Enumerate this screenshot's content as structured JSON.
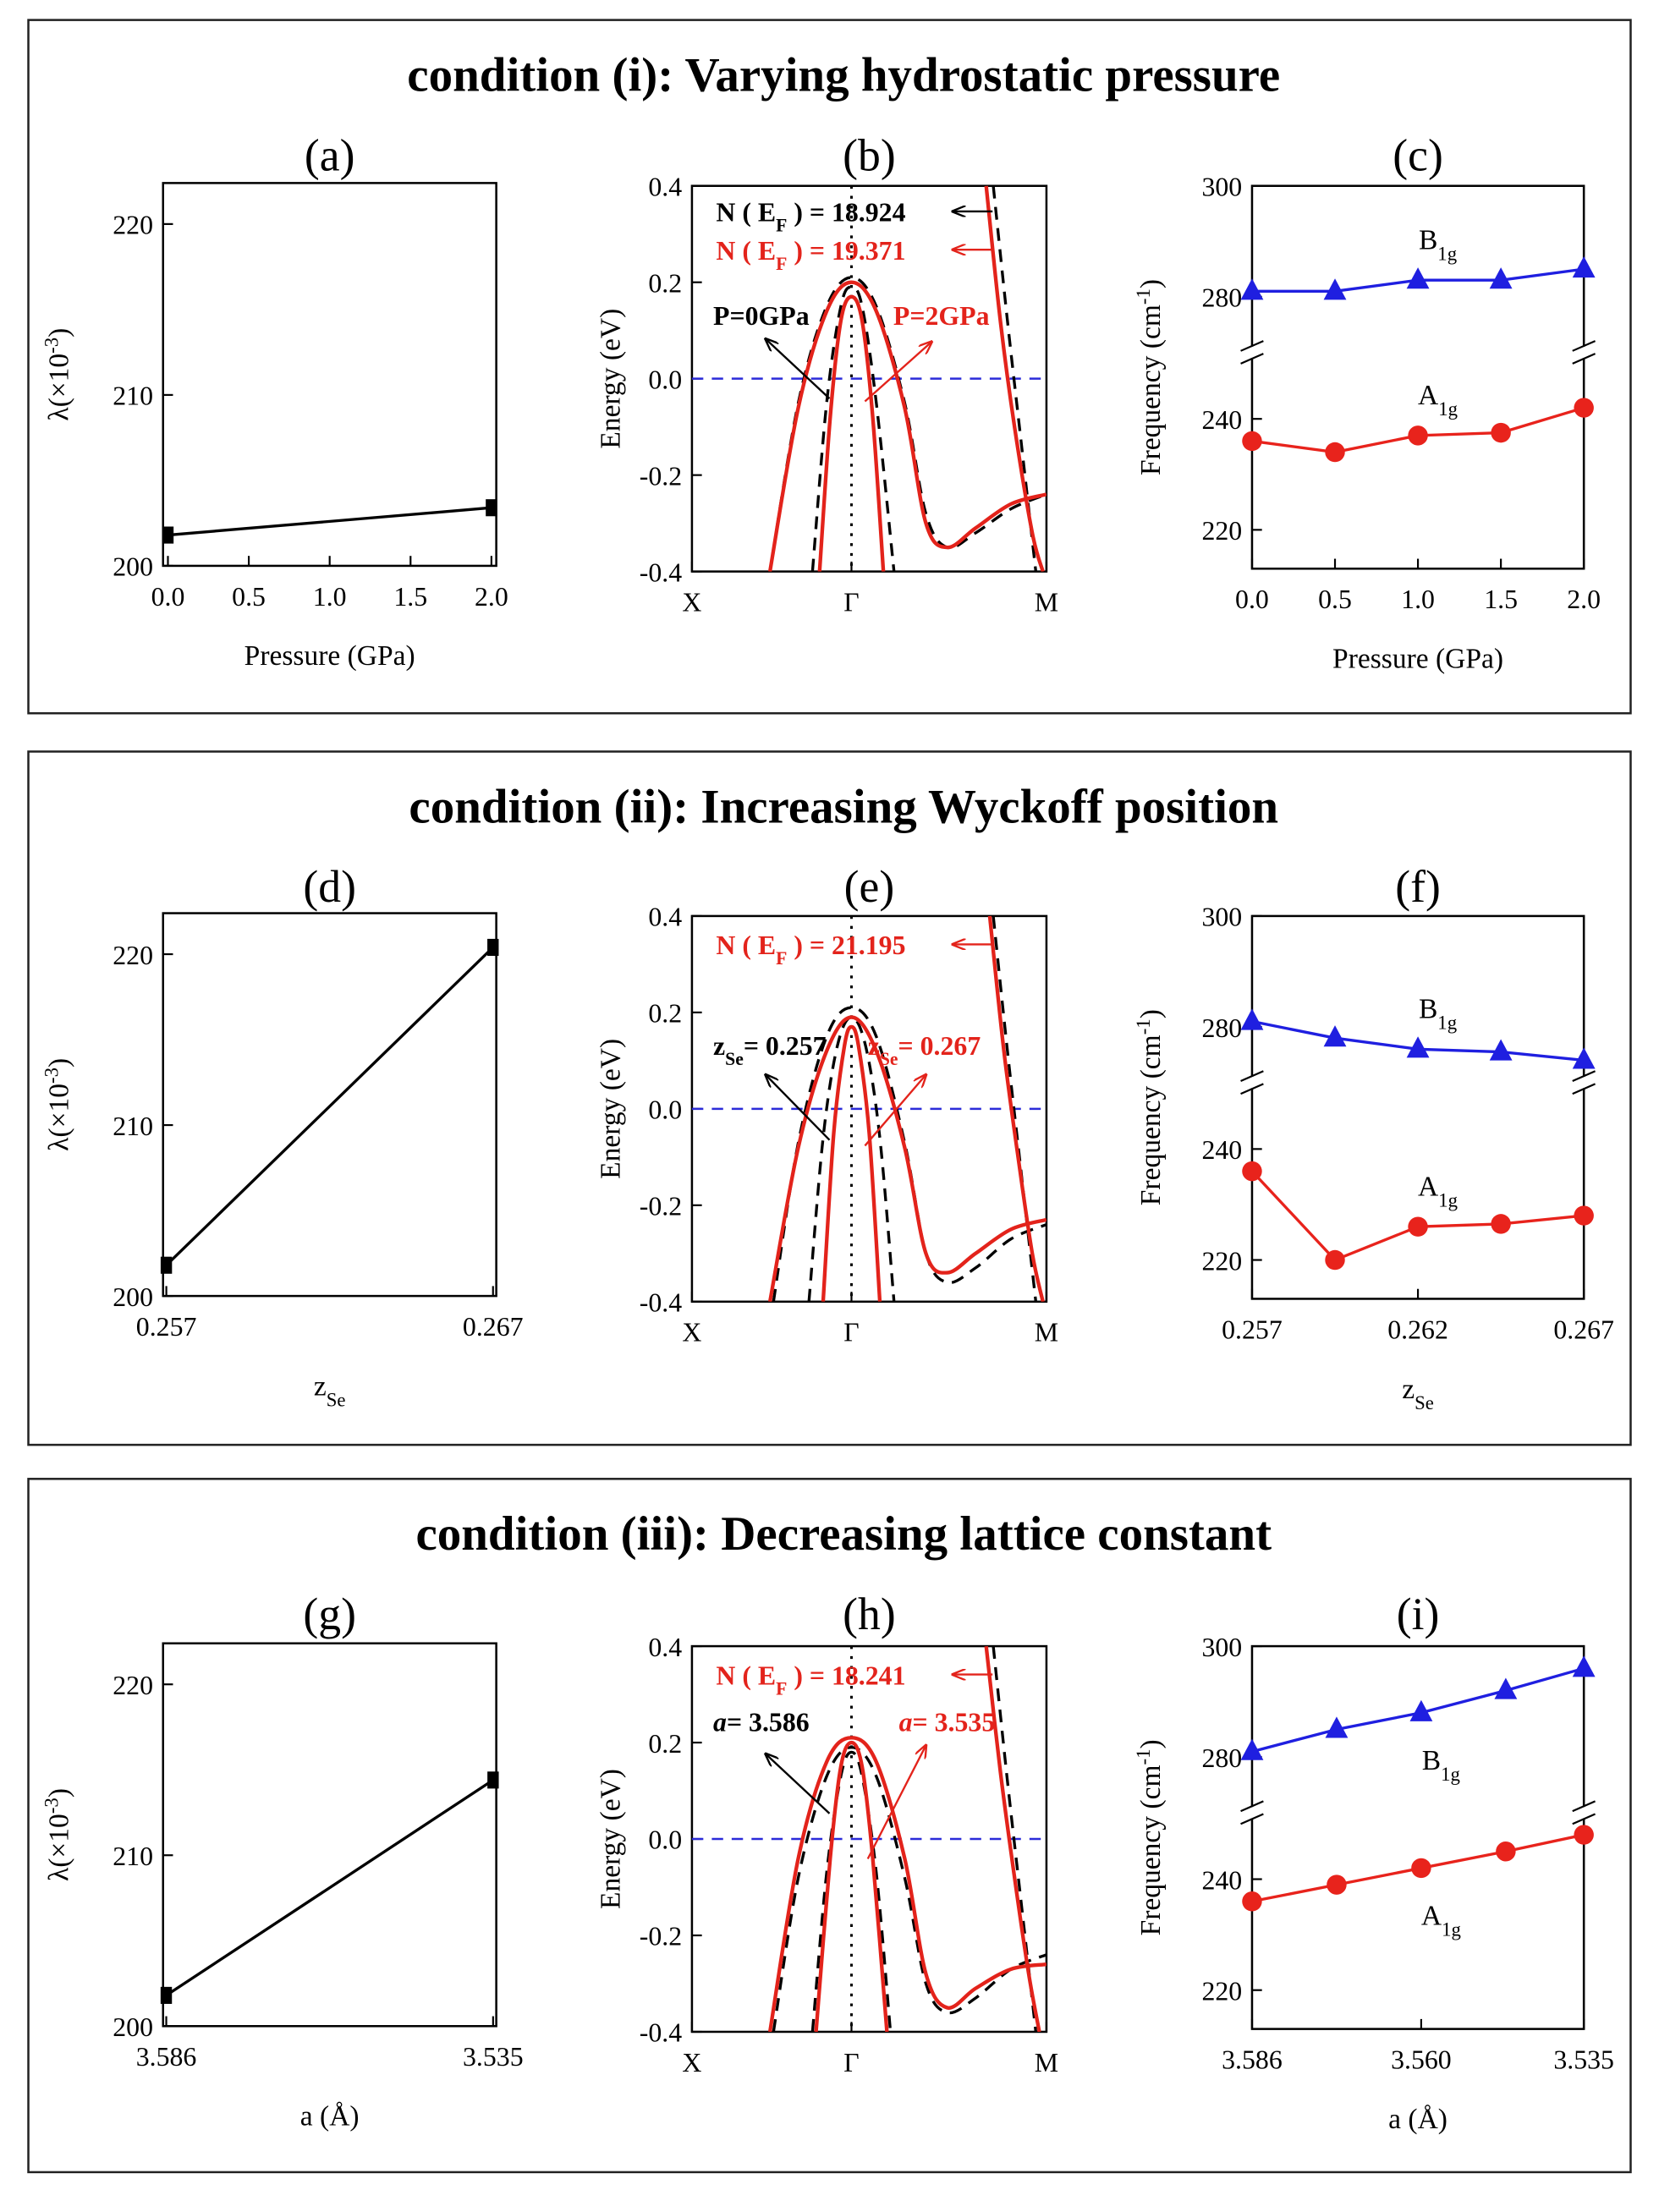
{
  "sections": [
    "condition (i): Varying hydrostatic pressure",
    "condition (ii): Increasing Wyckoff position",
    "condition (iii): Decreasing lattice constant"
  ],
  "chart_data": [
    {
      "type": "line",
      "label": "(a)",
      "xlabel": "Pressure (GPa)",
      "ylabel": {
        "text": "λ(×10",
        "sup": "-3",
        "after": ")"
      },
      "xlim": [
        -0.03,
        2.03
      ],
      "xticks": [
        {
          "value": 0,
          "label": "0.0"
        },
        0.5,
        {
          "value": 1,
          "label": "1.0"
        },
        1.5,
        {
          "value": 2,
          "label": "2.0"
        }
      ],
      "ylim": [
        200,
        222.4
      ],
      "yticks": [
        200,
        210,
        220
      ],
      "series": [
        {
          "color": "#000000",
          "marker": "square",
          "x": [
            0,
            2
          ],
          "values": [
            201.8,
            203.4
          ]
        }
      ]
    },
    {
      "type": "band",
      "label": "(b)",
      "ylabel": "Energy (eV)",
      "zero_line_color": "#2b2bd9",
      "xlim": [
        0,
        1
      ],
      "xticks": [
        {
          "value": 0,
          "label": "X"
        },
        {
          "value": 0.45,
          "label": "Γ"
        },
        {
          "value": 1,
          "label": "M"
        }
      ],
      "ylim": [
        -0.4,
        0.4
      ],
      "yticks": [
        -0.4,
        -0.2,
        {
          "value": 0,
          "label": "0.0"
        },
        0.2,
        0.4
      ],
      "series": [
        {
          "color": "#000000",
          "dash": true,
          "x": [
            0.22,
            0.3,
            0.38,
            0.45,
            0.52,
            0.6,
            0.66,
            0.72,
            0.8,
            0.9,
            1.0
          ],
          "values": [
            -0.4,
            -0.05,
            0.15,
            0.21,
            0.15,
            -0.05,
            -0.28,
            -0.35,
            -0.32,
            -0.27,
            -0.24
          ]
        },
        {
          "color": "#000000",
          "dash": true,
          "x": [
            0.34,
            0.38,
            0.42,
            0.45,
            0.48,
            0.52,
            0.57
          ],
          "values": [
            -0.4,
            -0.05,
            0.15,
            0.19,
            0.15,
            -0.05,
            -0.4
          ]
        },
        {
          "color": "#000000",
          "dash": true,
          "x": [
            0.85,
            0.89,
            0.93,
            0.97
          ],
          "values": [
            0.4,
            0.12,
            -0.14,
            -0.4
          ]
        },
        {
          "color": "#e3231b",
          "x": [
            0.22,
            0.3,
            0.38,
            0.45,
            0.52,
            0.6,
            0.66,
            0.72,
            0.8,
            0.9,
            1.0
          ],
          "values": [
            -0.4,
            -0.06,
            0.14,
            0.2,
            0.14,
            -0.06,
            -0.3,
            -0.35,
            -0.31,
            -0.26,
            -0.24
          ]
        },
        {
          "color": "#e3231b",
          "x": [
            0.36,
            0.39,
            0.42,
            0.45,
            0.48,
            0.51,
            0.54
          ],
          "values": [
            -0.4,
            -0.08,
            0.12,
            0.17,
            0.12,
            -0.08,
            -0.4
          ]
        },
        {
          "color": "#e3231b",
          "x": [
            0.83,
            0.87,
            0.91,
            0.96,
            0.99
          ],
          "values": [
            0.4,
            0.12,
            -0.1,
            -0.32,
            -0.4
          ]
        }
      ],
      "annotations": [
        {
          "text": {
            "text": "N ( E",
            "sub": "F",
            "after": " ) = 18.924"
          },
          "color": "#000000"
        },
        {
          "text": {
            "text": "N ( E",
            "sub": "F",
            "after": " ) = 19.371"
          },
          "color": "#e3231b"
        },
        {
          "text": "P=0GPa",
          "color": "#000000"
        },
        {
          "text": "P=2GPa",
          "color": "#e3231b"
        }
      ]
    },
    {
      "type": "line",
      "label": "(c)",
      "xlabel": "Pressure (GPa)",
      "ylabel": {
        "text": "Frequency (cm",
        "sup": "-1",
        "after": ")"
      },
      "xlim": [
        0,
        2
      ],
      "xticks": [
        {
          "value": 0,
          "label": "0.0"
        },
        0.5,
        {
          "value": 1,
          "label": "1.0"
        },
        1.5,
        {
          "value": 2,
          "label": "2.0"
        }
      ],
      "ylim": [
        213,
        300
      ],
      "ybreak": [
        252,
        270
      ],
      "yticks": [
        220,
        240,
        280,
        300
      ],
      "series": [
        {
          "name": {
            "text": "B",
            "sub": "1g"
          },
          "color": "#1f1fe0",
          "marker": "triangle",
          "x": [
            0,
            0.5,
            1,
            1.5,
            2
          ],
          "values": [
            281,
            281,
            283,
            283,
            285
          ]
        },
        {
          "name": {
            "text": "A",
            "sub": "1g"
          },
          "color": "#e8231c",
          "marker": "circle",
          "x": [
            0,
            0.5,
            1,
            1.5,
            2
          ],
          "values": [
            236,
            234,
            237,
            237.5,
            242
          ]
        }
      ]
    },
    {
      "type": "line",
      "label": "(d)",
      "xlabel": {
        "text": "z",
        "sub": "Se"
      },
      "ylabel": {
        "text": "λ(×10",
        "sup": "-3",
        "after": ")"
      },
      "xlim": [
        0.2569,
        0.2671
      ],
      "xticks": [
        0.257,
        0.267
      ],
      "ylim": [
        200,
        222.4
      ],
      "yticks": [
        200,
        210,
        220
      ],
      "series": [
        {
          "color": "#000000",
          "marker": "square",
          "x": [
            0.257,
            0.267
          ],
          "values": [
            201.8,
            220.4
          ]
        }
      ]
    },
    {
      "type": "band",
      "label": "(e)",
      "ylabel": "Energy (eV)",
      "zero_line_color": "#2b2bd9",
      "xlim": [
        0,
        1
      ],
      "xticks": [
        {
          "value": 0,
          "label": "X"
        },
        {
          "value": 0.45,
          "label": "Γ"
        },
        {
          "value": 1,
          "label": "M"
        }
      ],
      "ylim": [
        -0.4,
        0.4
      ],
      "yticks": [
        -0.4,
        -0.2,
        {
          "value": 0,
          "label": "0.0"
        },
        0.2,
        0.4
      ],
      "series": [
        {
          "color": "#000000",
          "dash": true,
          "x": [
            0.23,
            0.3,
            0.38,
            0.45,
            0.52,
            0.6,
            0.66,
            0.72,
            0.8,
            0.9,
            1.0
          ],
          "values": [
            -0.4,
            -0.07,
            0.15,
            0.21,
            0.15,
            -0.07,
            -0.3,
            -0.36,
            -0.33,
            -0.27,
            -0.24
          ]
        },
        {
          "color": "#000000",
          "dash": true,
          "x": [
            0.33,
            0.37,
            0.41,
            0.45,
            0.49,
            0.53,
            0.57
          ],
          "values": [
            -0.4,
            -0.06,
            0.13,
            0.19,
            0.13,
            -0.06,
            -0.4
          ]
        },
        {
          "color": "#000000",
          "dash": true,
          "x": [
            0.85,
            0.89,
            0.93,
            0.97
          ],
          "values": [
            0.4,
            0.12,
            -0.14,
            -0.4
          ]
        },
        {
          "color": "#e3231b",
          "x": [
            0.22,
            0.3,
            0.38,
            0.45,
            0.52,
            0.6,
            0.66,
            0.72,
            0.8,
            0.9,
            1.0
          ],
          "values": [
            -0.4,
            -0.08,
            0.12,
            0.19,
            0.12,
            -0.08,
            -0.3,
            -0.34,
            -0.3,
            -0.25,
            -0.23
          ]
        },
        {
          "color": "#e3231b",
          "x": [
            0.37,
            0.4,
            0.43,
            0.45,
            0.47,
            0.5,
            0.53
          ],
          "values": [
            -0.4,
            -0.05,
            0.13,
            0.17,
            0.13,
            -0.05,
            -0.4
          ]
        },
        {
          "color": "#e3231b",
          "x": [
            0.84,
            0.88,
            0.92,
            0.96,
            0.99
          ],
          "values": [
            0.4,
            0.12,
            -0.1,
            -0.3,
            -0.4
          ]
        }
      ],
      "annotations": [
        {
          "text": {
            "text": "N ( E",
            "sub": "F",
            "after": " ) = 21.195"
          },
          "color": "#e3231b"
        },
        {
          "text": {
            "text": "z",
            "sub": "Se",
            "after": "= 0.257"
          },
          "color": "#000000"
        },
        {
          "text": {
            "text": "z",
            "sub": "Se",
            "after": "= 0.267"
          },
          "color": "#e3231b"
        }
      ]
    },
    {
      "type": "line",
      "label": "(f)",
      "xlabel": {
        "text": "z",
        "sub": "Se"
      },
      "ylabel": {
        "text": "Frequency (cm",
        "sup": "-1",
        "after": ")"
      },
      "xlim": [
        0.257,
        0.267
      ],
      "xticks": [
        0.257,
        0.262,
        0.267
      ],
      "ylim": [
        213,
        300
      ],
      "ybreak": [
        252,
        270
      ],
      "yticks": [
        220,
        240,
        280,
        300
      ],
      "series": [
        {
          "name": {
            "text": "B",
            "sub": "1g"
          },
          "color": "#1f1fe0",
          "marker": "triangle",
          "x": [
            0.257,
            0.2595,
            0.262,
            0.2645,
            0.267
          ],
          "values": [
            281,
            278,
            276,
            275.5,
            274
          ]
        },
        {
          "name": {
            "text": "A",
            "sub": "1g"
          },
          "color": "#e8231c",
          "marker": "circle",
          "x": [
            0.257,
            0.2595,
            0.262,
            0.2645,
            0.267
          ],
          "values": [
            236,
            220,
            226,
            226.5,
            228
          ]
        }
      ]
    },
    {
      "type": "line",
      "label": "(g)",
      "xlabel": "a (Å)",
      "ylabel": {
        "text": "λ(×10",
        "sup": "-3",
        "after": ")"
      },
      "xlim": [
        3.5865,
        3.5345
      ],
      "xticks": [
        3.586,
        3.535
      ],
      "ylim": [
        200,
        222.4
      ],
      "yticks": [
        200,
        210,
        220
      ],
      "series": [
        {
          "color": "#000000",
          "marker": "square",
          "x": [
            3.586,
            3.535
          ],
          "values": [
            201.8,
            214.4
          ]
        }
      ]
    },
    {
      "type": "band",
      "label": "(h)",
      "ylabel": "Energy (eV)",
      "zero_line_color": "#2b2bd9",
      "xlim": [
        0,
        1
      ],
      "xticks": [
        {
          "value": 0,
          "label": "X"
        },
        {
          "value": 0.45,
          "label": "Γ"
        },
        {
          "value": 1,
          "label": "M"
        }
      ],
      "ylim": [
        -0.4,
        0.4
      ],
      "yticks": [
        -0.4,
        -0.2,
        {
          "value": 0,
          "label": "0.0"
        },
        0.2,
        0.4
      ],
      "series": [
        {
          "color": "#000000",
          "dash": true,
          "x": [
            0.23,
            0.3,
            0.38,
            0.45,
            0.52,
            0.6,
            0.66,
            0.72,
            0.8,
            0.9,
            1.0
          ],
          "values": [
            -0.4,
            -0.08,
            0.13,
            0.19,
            0.13,
            -0.08,
            -0.3,
            -0.36,
            -0.33,
            -0.27,
            -0.24
          ]
        },
        {
          "color": "#000000",
          "dash": true,
          "x": [
            0.34,
            0.38,
            0.42,
            0.45,
            0.48,
            0.52,
            0.56
          ],
          "values": [
            -0.4,
            -0.07,
            0.13,
            0.18,
            0.13,
            -0.07,
            -0.4
          ]
        },
        {
          "color": "#000000",
          "dash": true,
          "x": [
            0.85,
            0.89,
            0.93,
            0.97
          ],
          "values": [
            0.4,
            0.12,
            -0.14,
            -0.4
          ]
        },
        {
          "color": "#e3231b",
          "x": [
            0.22,
            0.3,
            0.38,
            0.45,
            0.52,
            0.6,
            0.66,
            0.72,
            0.8,
            0.9,
            1.0
          ],
          "values": [
            -0.4,
            -0.04,
            0.16,
            0.21,
            0.16,
            -0.04,
            -0.28,
            -0.35,
            -0.31,
            -0.27,
            -0.26
          ]
        },
        {
          "color": "#e3231b",
          "x": [
            0.35,
            0.39,
            0.42,
            0.45,
            0.48,
            0.51,
            0.55
          ],
          "values": [
            -0.4,
            -0.04,
            0.15,
            0.2,
            0.15,
            -0.04,
            -0.4
          ]
        },
        {
          "color": "#e3231b",
          "x": [
            0.83,
            0.87,
            0.91,
            0.95,
            0.98
          ],
          "values": [
            0.4,
            0.14,
            -0.08,
            -0.28,
            -0.4
          ]
        }
      ],
      "annotations": [
        {
          "text": {
            "text": "N ( E",
            "sub": "F",
            "after": " ) = 18.241"
          },
          "color": "#e3231b"
        },
        {
          "text": {
            "italic": "a",
            "after": "= 3.586"
          },
          "color": "#000000"
        },
        {
          "text": {
            "italic": "a",
            "after": "= 3.535"
          },
          "color": "#e3231b"
        }
      ]
    },
    {
      "type": "line",
      "label": "(i)",
      "xlabel": "a (Å)",
      "ylabel": {
        "text": "Frequency (cm",
        "sup": "-1",
        "after": ")"
      },
      "xlim": [
        3.586,
        3.535
      ],
      "xticks": [
        3.586,
        {
          "value": 3.56,
          "label": "3.560"
        },
        3.535
      ],
      "ylim": [
        213,
        300
      ],
      "ybreak": [
        252,
        270
      ],
      "yticks": [
        220,
        240,
        280,
        300
      ],
      "series": [
        {
          "name": {
            "text": "B",
            "sub": "1g"
          },
          "color": "#1f1fe0",
          "marker": "triangle",
          "x": [
            3.586,
            3.573,
            3.56,
            3.547,
            3.535
          ],
          "values": [
            281,
            285,
            288,
            292,
            296
          ]
        },
        {
          "name": {
            "text": "A",
            "sub": "1g"
          },
          "color": "#e8231c",
          "marker": "circle",
          "x": [
            3.586,
            3.573,
            3.56,
            3.547,
            3.535
          ],
          "values": [
            236,
            239,
            242,
            245,
            248
          ]
        }
      ]
    }
  ]
}
